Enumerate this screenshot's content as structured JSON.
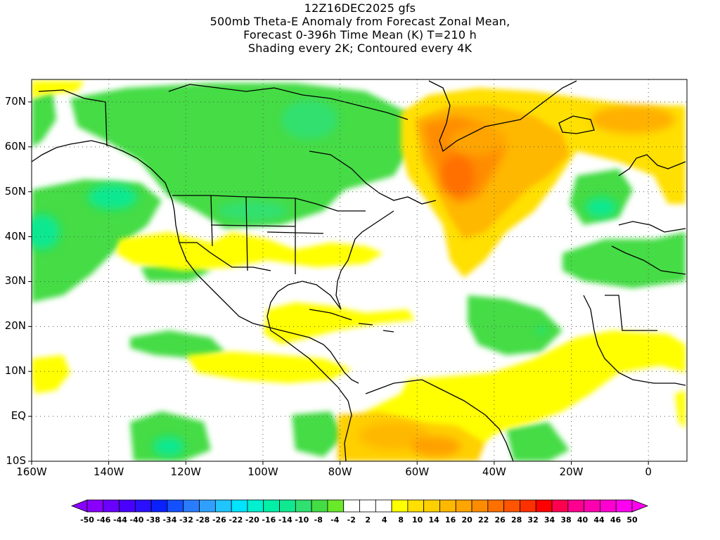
{
  "title": {
    "line1": "12Z16DEC2025 gfs",
    "line2": "500mb Theta-E Anomaly from Forecast Zonal Mean,",
    "line3": "Forecast 0-396h Time Mean (K) T=210 h",
    "line4": "Shading every 2K; Contoured every 4K"
  },
  "map": {
    "lon_range": [
      -160,
      10
    ],
    "lat_range": [
      -10,
      75
    ],
    "lat_labels": [
      "70N",
      "60N",
      "50N",
      "40N",
      "30N",
      "20N",
      "10N",
      "EQ",
      "10S"
    ],
    "lon_labels": [
      "160W",
      "140W",
      "120W",
      "100W",
      "80W",
      "60W",
      "40W",
      "20W",
      "0"
    ]
  },
  "colorbar": {
    "labels": [
      "-50",
      "-46",
      "-44",
      "-40",
      "-38",
      "-34",
      "-32",
      "-28",
      "-26",
      "-22",
      "-20",
      "-16",
      "-14",
      "-10",
      "-8",
      "-4",
      "-2",
      "2",
      "4",
      "8",
      "10",
      "14",
      "16",
      "20",
      "22",
      "26",
      "28",
      "32",
      "34",
      "38",
      "40",
      "44",
      "46",
      "50"
    ],
    "colors": [
      "#8a00ff",
      "#6a00ff",
      "#4a00ff",
      "#2a10ff",
      "#0a20ff",
      "#1450ff",
      "#2a7cff",
      "#30a0ff",
      "#20c4ff",
      "#00e4ff",
      "#00f0d0",
      "#00f0a8",
      "#10e890",
      "#30e070",
      "#44dc44",
      "#6ae82a",
      "#ffffff",
      "#ffffff",
      "#ffffff",
      "#ffff00",
      "#ffe000",
      "#ffd000",
      "#ffb800",
      "#ffa400",
      "#ff8c00",
      "#ff7000",
      "#ff5400",
      "#ff3000",
      "#ff0000",
      "#ff0050",
      "#ff0090",
      "#ff00b0",
      "#ff00d0",
      "#ff00f0"
    ]
  }
}
